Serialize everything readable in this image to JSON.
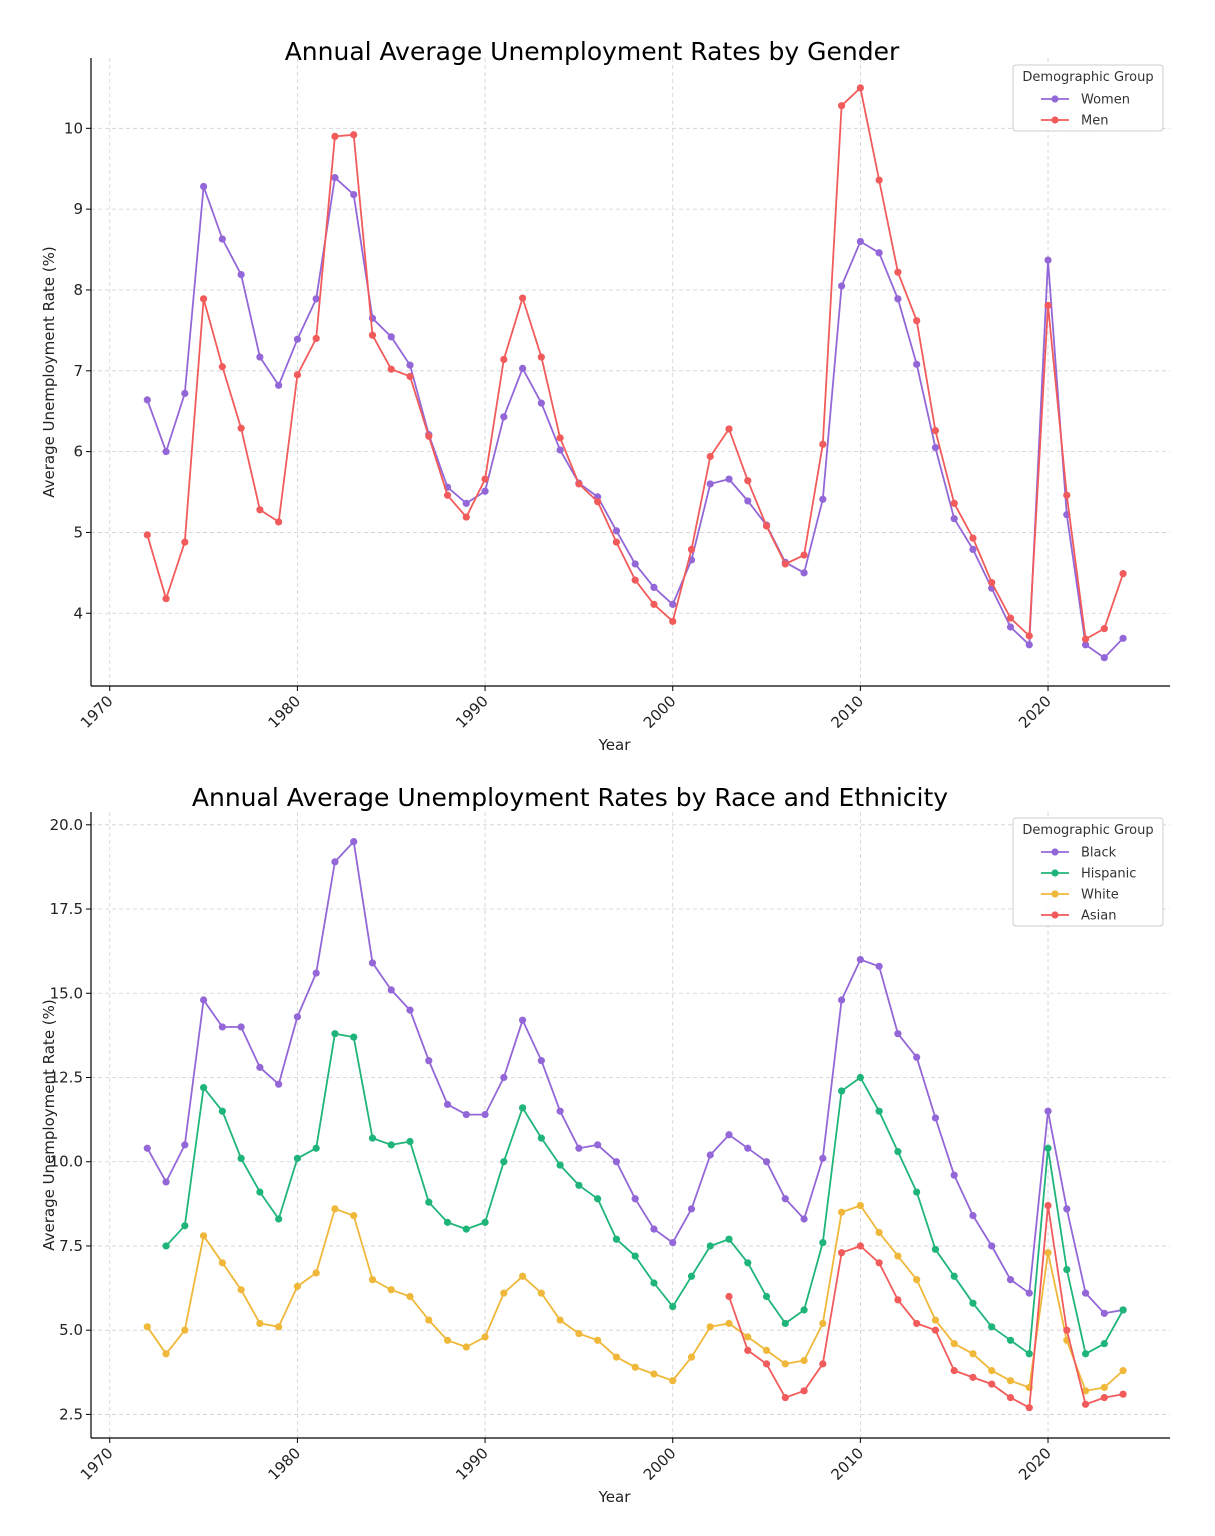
{
  "chart_data": [
    {
      "type": "line",
      "title": "Annual Average Unemployment Rates by Gender",
      "xlabel": "Year",
      "ylabel": "Average Unemployment Rate (%)",
      "xlim": [
        1969,
        2026.5
      ],
      "ylim": [
        3.1,
        10.87
      ],
      "xticks": [
        1970,
        1980,
        1990,
        2000,
        2010,
        2020
      ],
      "yticks": [
        4,
        5,
        6,
        7,
        8,
        9,
        10
      ],
      "ytick_labels": [
        "4",
        "5",
        "6",
        "7",
        "8",
        "9",
        "10"
      ],
      "grid": true,
      "legend_title": "Demographic Group",
      "legend_position": "top-right",
      "series": [
        {
          "name": "Women",
          "color": "#9467d8",
          "x": [
            1972,
            1973,
            1974,
            1975,
            1976,
            1977,
            1978,
            1979,
            1980,
            1981,
            1982,
            1983,
            1984,
            1985,
            1986,
            1987,
            1988,
            1989,
            1990,
            1991,
            1992,
            1993,
            1994,
            1995,
            1996,
            1997,
            1998,
            1999,
            2000,
            2001,
            2002,
            2003,
            2004,
            2005,
            2006,
            2007,
            2008,
            2009,
            2010,
            2011,
            2012,
            2013,
            2014,
            2015,
            2016,
            2017,
            2018,
            2019,
            2020,
            2021,
            2022,
            2023,
            2024
          ],
          "values": [
            6.64,
            6.0,
            6.72,
            9.28,
            8.63,
            8.19,
            7.17,
            6.82,
            7.39,
            7.89,
            9.39,
            9.18,
            7.65,
            7.42,
            7.07,
            6.21,
            5.56,
            5.36,
            5.51,
            6.43,
            7.03,
            6.6,
            6.02,
            5.61,
            5.44,
            5.02,
            4.61,
            4.32,
            4.11,
            4.66,
            5.6,
            5.66,
            5.39,
            5.09,
            4.63,
            4.5,
            5.41,
            8.05,
            8.6,
            8.46,
            7.89,
            7.08,
            6.05,
            5.17,
            4.79,
            4.31,
            3.83,
            3.61,
            8.37,
            5.22,
            3.61,
            3.45,
            3.69
          ]
        },
        {
          "name": "Men",
          "color": "#f25b5b",
          "x": [
            1972,
            1973,
            1974,
            1975,
            1976,
            1977,
            1978,
            1979,
            1980,
            1981,
            1982,
            1983,
            1984,
            1985,
            1986,
            1987,
            1988,
            1989,
            1990,
            1991,
            1992,
            1993,
            1994,
            1995,
            1996,
            1997,
            1998,
            1999,
            2000,
            2001,
            2002,
            2003,
            2004,
            2005,
            2006,
            2007,
            2008,
            2009,
            2010,
            2011,
            2012,
            2013,
            2014,
            2015,
            2016,
            2017,
            2018,
            2019,
            2020,
            2021,
            2022,
            2023,
            2024
          ],
          "values": [
            4.97,
            4.18,
            4.88,
            7.89,
            7.05,
            6.29,
            5.28,
            5.13,
            6.95,
            7.4,
            9.9,
            9.92,
            7.44,
            7.02,
            6.93,
            6.19,
            5.46,
            5.19,
            5.66,
            7.14,
            7.9,
            7.17,
            6.17,
            5.6,
            5.38,
            4.88,
            4.41,
            4.11,
            3.9,
            4.79,
            5.94,
            6.28,
            5.64,
            5.08,
            4.61,
            4.72,
            6.09,
            10.28,
            10.5,
            9.36,
            8.22,
            7.62,
            6.26,
            5.36,
            4.93,
            4.38,
            3.94,
            3.72,
            7.81,
            5.46,
            3.68,
            3.81,
            4.49
          ]
        }
      ]
    },
    {
      "type": "line",
      "title": "Annual Average Unemployment Rates by Race and Ethnicity",
      "xlabel": "Year",
      "ylabel": "Average Unemployment Rate (%)",
      "xlim": [
        1969,
        2026.5
      ],
      "ylim": [
        1.8,
        20.38
      ],
      "xticks": [
        1970,
        1980,
        1990,
        2000,
        2010,
        2020
      ],
      "yticks": [
        2.5,
        5.0,
        7.5,
        10.0,
        12.5,
        15.0,
        17.5,
        20.0
      ],
      "ytick_labels": [
        "2.5",
        "5.0",
        "7.5",
        "10.0",
        "12.5",
        "15.0",
        "17.5",
        "20.0"
      ],
      "grid": true,
      "legend_title": "Demographic Group",
      "legend_position": "top-right",
      "series": [
        {
          "name": "Black",
          "color": "#9467d8",
          "x": [
            1972,
            1973,
            1974,
            1975,
            1976,
            1977,
            1978,
            1979,
            1980,
            1981,
            1982,
            1983,
            1984,
            1985,
            1986,
            1987,
            1988,
            1989,
            1990,
            1991,
            1992,
            1993,
            1994,
            1995,
            1996,
            1997,
            1998,
            1999,
            2000,
            2001,
            2002,
            2003,
            2004,
            2005,
            2006,
            2007,
            2008,
            2009,
            2010,
            2011,
            2012,
            2013,
            2014,
            2015,
            2016,
            2017,
            2018,
            2019,
            2020,
            2021,
            2022,
            2023,
            2024
          ],
          "values": [
            10.4,
            9.4,
            10.5,
            14.8,
            14.0,
            14.0,
            12.8,
            12.3,
            14.3,
            15.6,
            18.9,
            19.5,
            15.9,
            15.1,
            14.5,
            13.0,
            11.7,
            11.4,
            11.4,
            12.5,
            14.2,
            13.0,
            11.5,
            10.4,
            10.5,
            10.0,
            8.9,
            8.0,
            7.6,
            8.6,
            10.2,
            10.8,
            10.4,
            10.0,
            8.9,
            8.3,
            10.1,
            14.8,
            16.0,
            15.8,
            13.8,
            13.1,
            11.3,
            9.6,
            8.4,
            7.5,
            6.5,
            6.1,
            11.5,
            8.6,
            6.1,
            5.5,
            5.6
          ]
        },
        {
          "name": "Hispanic",
          "color": "#1fb57a",
          "x": [
            1973,
            1974,
            1975,
            1976,
            1977,
            1978,
            1979,
            1980,
            1981,
            1982,
            1983,
            1984,
            1985,
            1986,
            1987,
            1988,
            1989,
            1990,
            1991,
            1992,
            1993,
            1994,
            1995,
            1996,
            1997,
            1998,
            1999,
            2000,
            2001,
            2002,
            2003,
            2004,
            2005,
            2006,
            2007,
            2008,
            2009,
            2010,
            2011,
            2012,
            2013,
            2014,
            2015,
            2016,
            2017,
            2018,
            2019,
            2020,
            2021,
            2022,
            2023,
            2024
          ],
          "values": [
            7.5,
            8.1,
            12.2,
            11.5,
            10.1,
            9.1,
            8.3,
            10.1,
            10.4,
            13.8,
            13.7,
            10.7,
            10.5,
            10.6,
            8.8,
            8.2,
            8.0,
            8.2,
            10.0,
            11.6,
            10.7,
            9.9,
            9.3,
            8.9,
            7.7,
            7.2,
            6.4,
            5.7,
            6.6,
            7.5,
            7.7,
            7.0,
            6.0,
            5.2,
            5.6,
            7.6,
            12.1,
            12.5,
            11.5,
            10.3,
            9.1,
            7.4,
            6.6,
            5.8,
            5.1,
            4.7,
            4.3,
            10.4,
            6.8,
            4.3,
            4.6,
            5.6
          ]
        },
        {
          "name": "White",
          "color": "#f0b83a",
          "x": [
            1972,
            1973,
            1974,
            1975,
            1976,
            1977,
            1978,
            1979,
            1980,
            1981,
            1982,
            1983,
            1984,
            1985,
            1986,
            1987,
            1988,
            1989,
            1990,
            1991,
            1992,
            1993,
            1994,
            1995,
            1996,
            1997,
            1998,
            1999,
            2000,
            2001,
            2002,
            2003,
            2004,
            2005,
            2006,
            2007,
            2008,
            2009,
            2010,
            2011,
            2012,
            2013,
            2014,
            2015,
            2016,
            2017,
            2018,
            2019,
            2020,
            2021,
            2022,
            2023,
            2024
          ],
          "values": [
            5.1,
            4.3,
            5.0,
            7.8,
            7.0,
            6.2,
            5.2,
            5.1,
            6.3,
            6.7,
            8.6,
            8.4,
            6.5,
            6.2,
            6.0,
            5.3,
            4.7,
            4.5,
            4.8,
            6.1,
            6.6,
            6.1,
            5.3,
            4.9,
            4.7,
            4.2,
            3.9,
            3.7,
            3.5,
            4.2,
            5.1,
            5.2,
            4.8,
            4.4,
            4.0,
            4.1,
            5.2,
            8.5,
            8.7,
            7.9,
            7.2,
            6.5,
            5.3,
            4.6,
            4.3,
            3.8,
            3.5,
            3.3,
            7.3,
            4.7,
            3.2,
            3.3,
            3.8
          ]
        },
        {
          "name": "Asian",
          "color": "#f25b5b",
          "x": [
            2003,
            2004,
            2005,
            2006,
            2007,
            2008,
            2009,
            2010,
            2011,
            2012,
            2013,
            2014,
            2015,
            2016,
            2017,
            2018,
            2019,
            2020,
            2021,
            2022,
            2023,
            2024
          ],
          "values": [
            6.0,
            4.4,
            4.0,
            3.0,
            3.2,
            4.0,
            7.3,
            7.5,
            7.0,
            5.9,
            5.2,
            5.0,
            3.8,
            3.6,
            3.4,
            3.0,
            2.7,
            8.7,
            5.0,
            2.8,
            3.0,
            3.1
          ]
        }
      ]
    }
  ]
}
